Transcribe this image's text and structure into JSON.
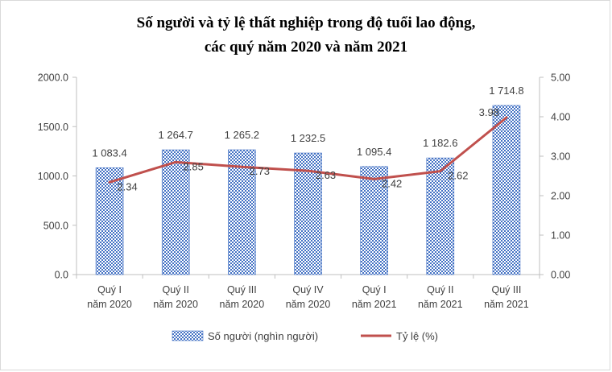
{
  "chart_data": {
    "type": "bar+line",
    "title_line1": "Số người và tỷ lệ thất nghiệp trong độ tuổi lao động,",
    "title_line2": "các quý năm 2020 và năm 2021",
    "categories": [
      [
        "Quý I",
        "năm 2020"
      ],
      [
        "Quý II",
        "năm 2020"
      ],
      [
        "Quý III",
        "năm 2020"
      ],
      [
        "Quý IV",
        "năm 2020"
      ],
      [
        "Quý I",
        "năm 2021"
      ],
      [
        "Quý II",
        "năm 2021"
      ],
      [
        "Quý III",
        "năm 2021"
      ]
    ],
    "bar_series": {
      "name": "Số người (nghìn người)",
      "values": [
        1083.4,
        1264.7,
        1265.2,
        1232.5,
        1095.4,
        1182.6,
        1714.8
      ],
      "labels": [
        "1 083.4",
        "1 264.7",
        "1 265.2",
        "1 232.5",
        "1 095.4",
        "1 182.6",
        "1 714.8"
      ],
      "color": "#4472c4"
    },
    "line_series": {
      "name": "Tỷ lệ (%)",
      "values": [
        2.34,
        2.85,
        2.73,
        2.63,
        2.42,
        2.62,
        3.98
      ],
      "labels": [
        "2.34",
        "2.85",
        "2.73",
        "2.63",
        "2.42",
        "2.62",
        "3.98"
      ],
      "color": "#c0504d"
    },
    "y_left": {
      "min": 0,
      "max": 2000,
      "ticks": [
        "0.0",
        "500.0",
        "1000.0",
        "1500.0",
        "2000.0"
      ]
    },
    "y_right": {
      "min": 0,
      "max": 5,
      "ticks": [
        "0.00",
        "1.00",
        "2.00",
        "3.00",
        "4.00",
        "5.00"
      ]
    },
    "legend_position": "bottom-center"
  }
}
